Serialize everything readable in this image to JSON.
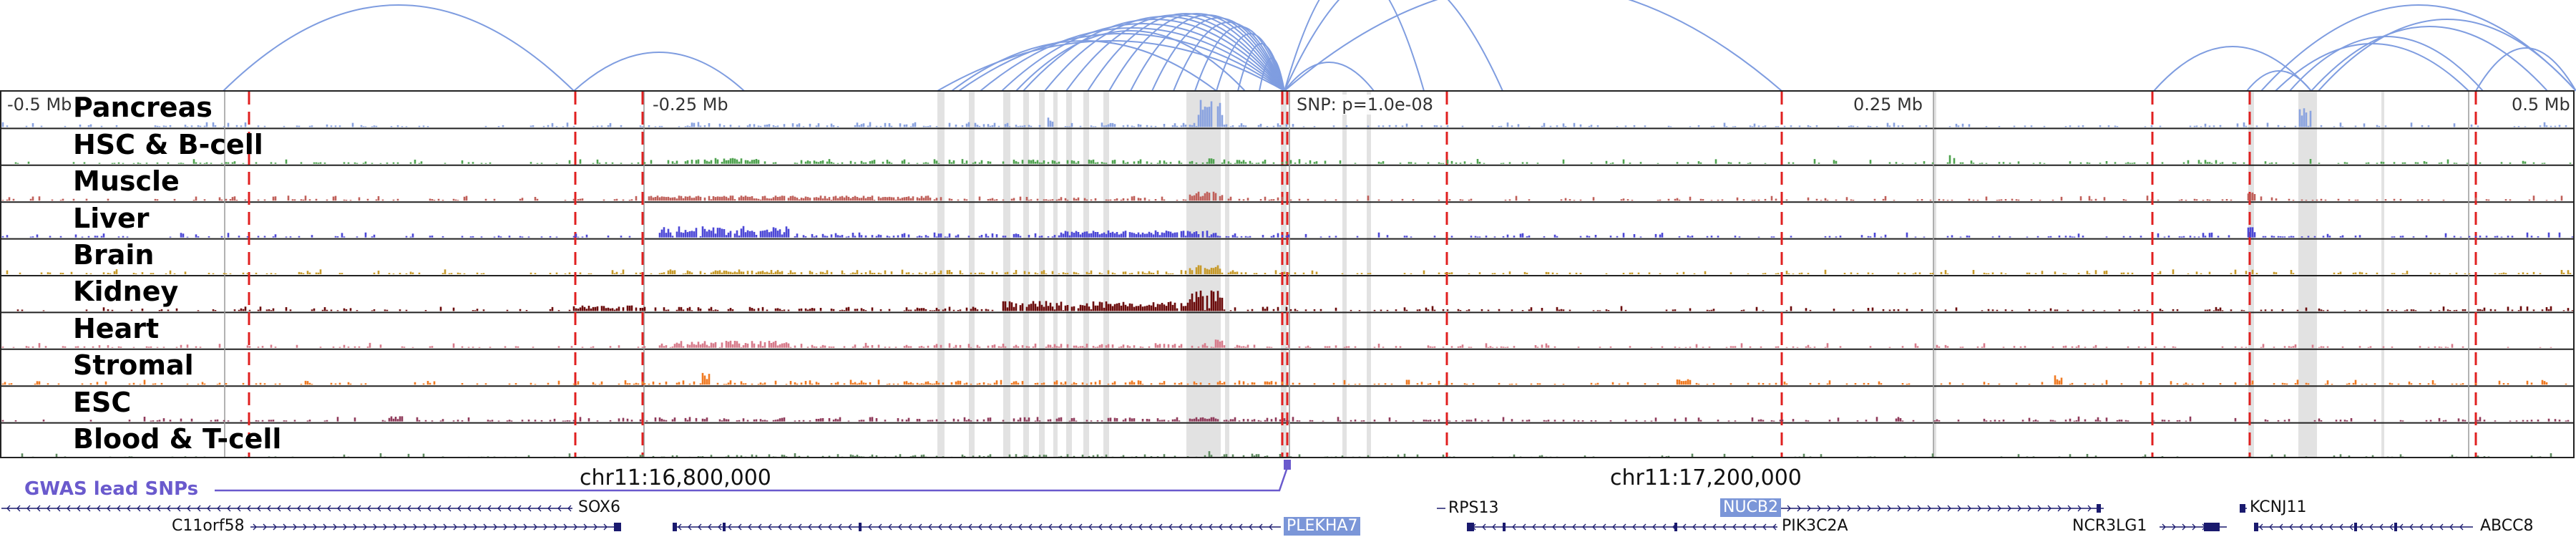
{
  "axis": {
    "labels": [
      "-0.5 Mb",
      "-0.25 Mb",
      "SNP: p=1.0e-08",
      "0.25 Mb",
      "0.5 Mb"
    ]
  },
  "tracks": [
    {
      "name": "Pancreas",
      "color": "#8aa3e0"
    },
    {
      "name": "HSC & B-cell",
      "color": "#4ea24e"
    },
    {
      "name": "Muscle",
      "color": "#c0605a"
    },
    {
      "name": "Liver",
      "color": "#4b47d6"
    },
    {
      "name": "Brain",
      "color": "#c79a2a"
    },
    {
      "name": "Kidney",
      "color": "#6b0a0a"
    },
    {
      "name": "Heart",
      "color": "#d77a8a"
    },
    {
      "name": "Stromal",
      "color": "#f07a22"
    },
    {
      "name": "ESC",
      "color": "#8f3a5a"
    },
    {
      "name": "Blood & T-cell",
      "color": "#5e8a60"
    }
  ],
  "coordinates": {
    "left": "chr11:16,800,000",
    "right": "chr11:17,200,000"
  },
  "gwas": {
    "label": "GWAS lead SNPs"
  },
  "genes": [
    {
      "name": "SOX6",
      "highlight": false
    },
    {
      "name": "C11orf58",
      "highlight": false
    },
    {
      "name": "PLEKHA7",
      "highlight": true
    },
    {
      "name": "RPS13",
      "highlight": false
    },
    {
      "name": "NUCB2",
      "highlight": true
    },
    {
      "name": "PIK3C2A",
      "highlight": false
    },
    {
      "name": "NCR3LG1",
      "highlight": false
    },
    {
      "name": "KCNJ11",
      "highlight": false
    },
    {
      "name": "ABCC8",
      "highlight": false
    }
  ],
  "colors": {
    "arc": "#7f9de0",
    "dashed_marker": "#e02020",
    "highlight_band": "#d8d8d8",
    "gwas": "#6a5acd"
  }
}
